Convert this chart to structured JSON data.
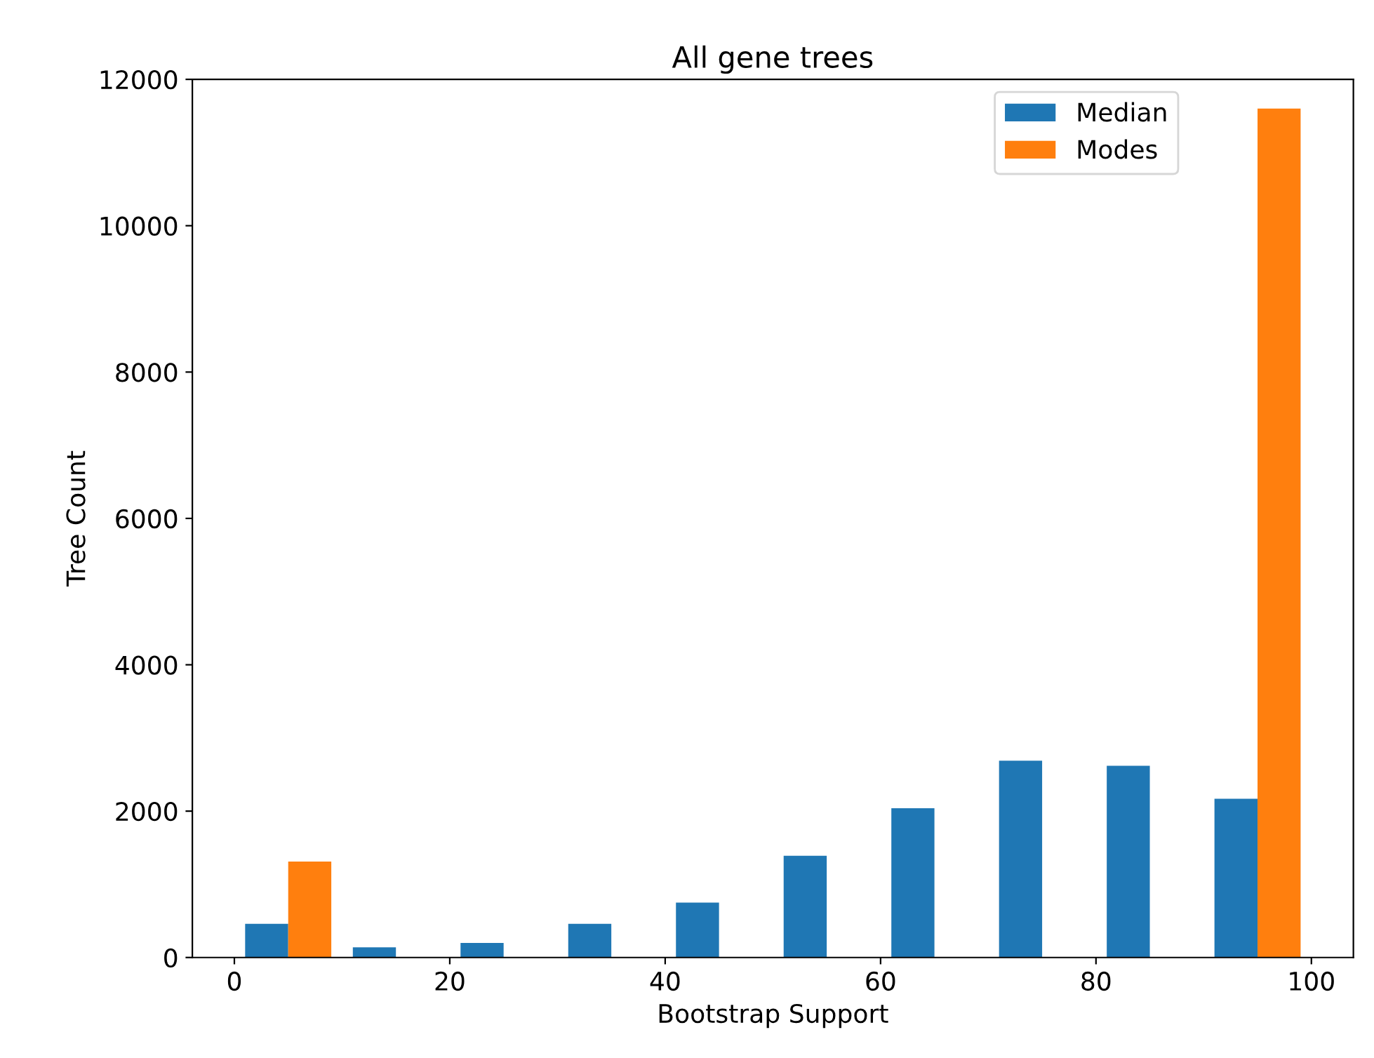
{
  "chart_data": {
    "type": "histogram",
    "title": "All gene trees",
    "xlabel": "Bootstrap Support",
    "ylabel": "Tree Count",
    "bins": [
      0,
      10,
      20,
      30,
      40,
      50,
      60,
      70,
      80,
      90,
      100
    ],
    "series": [
      {
        "name": "Median",
        "color": "#1f77b4",
        "values": [
          460,
          140,
          200,
          460,
          750,
          1390,
          2040,
          2690,
          2620,
          2170
        ]
      },
      {
        "name": "Modes",
        "color": "#ff7f0e",
        "values": [
          1310,
          0,
          0,
          0,
          0,
          0,
          0,
          0,
          0,
          11600
        ]
      }
    ],
    "xlim": [
      -3.9,
      103.9
    ],
    "ylim": [
      0,
      12000
    ],
    "xticks": [
      0,
      20,
      40,
      60,
      80,
      100
    ],
    "yticks": [
      0,
      2000,
      4000,
      6000,
      8000,
      10000,
      12000
    ],
    "grid": false,
    "legend": "top right"
  }
}
